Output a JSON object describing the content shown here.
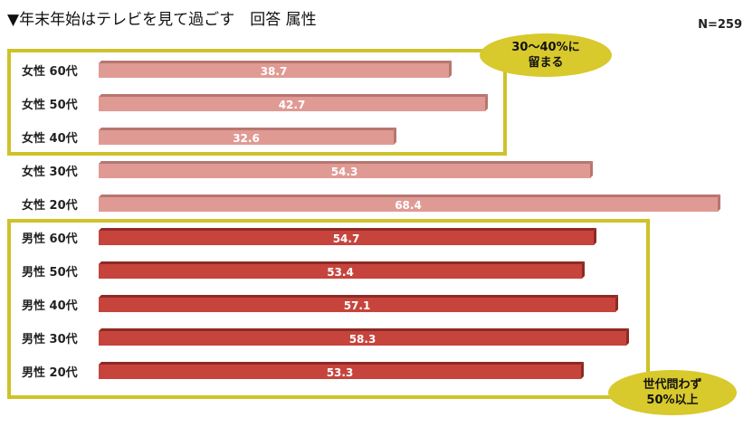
{
  "title": "▼年末年始はテレビを見て過ごす　回答 属性",
  "sample_size": "N=259",
  "callouts": {
    "women_note": "30～40%に\n留まる",
    "men_note": "世代問わず\n50%以上"
  },
  "colors": {
    "female_bar": "#e09a94",
    "female_bar_side": "#b87670",
    "male_bar": "#c6443c",
    "male_bar_side": "#8e2a24",
    "highlight_box": "#cfc22a",
    "callout_fill": "#d8c92c"
  },
  "chart_data": {
    "type": "bar",
    "orientation": "horizontal",
    "categories": [
      "女性 60代",
      "女性 50代",
      "女性 40代",
      "女性 30代",
      "女性 20代",
      "男性 60代",
      "男性 50代",
      "男性 40代",
      "男性 30代",
      "男性 20代"
    ],
    "values": [
      38.7,
      42.7,
      32.6,
      54.3,
      68.4,
      54.7,
      53.4,
      57.1,
      58.3,
      53.3
    ],
    "groups": [
      "female",
      "female",
      "female",
      "female",
      "female",
      "male",
      "male",
      "male",
      "male",
      "male"
    ],
    "xlim": [
      0,
      70
    ],
    "grid": false,
    "legend": "none"
  }
}
